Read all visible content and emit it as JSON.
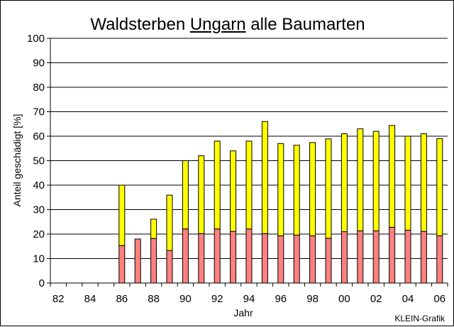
{
  "title": {
    "pre": "Waldsterben ",
    "underlined": "Ungarn",
    "post": " alle Baumarten"
  },
  "credit": "KLEIN-Grafik",
  "colors": {
    "lower": "#ff8080",
    "upper": "#ffff00",
    "outline": "#000000",
    "grid": "#000000"
  },
  "chart_data": {
    "type": "bar",
    "stacked": true,
    "title": "Waldsterben Ungarn alle Baumarten",
    "xlabel": "Jahr",
    "ylabel": "Anteil geschädigt [%]",
    "ylim": [
      0,
      100
    ],
    "yticks": [
      "0",
      "10",
      "20",
      "30",
      "40",
      "50",
      "60",
      "70",
      "80",
      "90",
      "100"
    ],
    "grid": true,
    "categories": [
      "82",
      "83",
      "84",
      "85",
      "86",
      "87",
      "88",
      "89",
      "90",
      "91",
      "92",
      "93",
      "94",
      "95",
      "96",
      "97",
      "98",
      "99",
      "00",
      "01",
      "02",
      "03",
      "04",
      "05",
      "06"
    ],
    "xtick_labels": [
      "82",
      "",
      "84",
      "",
      "86",
      "",
      "88",
      "",
      "90",
      "",
      "92",
      "",
      "94",
      "",
      "96",
      "",
      "98",
      "",
      "00",
      "",
      "02",
      "",
      "04",
      "",
      "06"
    ],
    "series": [
      {
        "color": "#ff8080",
        "values": [
          null,
          null,
          null,
          null,
          15.3,
          18,
          18.2,
          13.3,
          22.1,
          20.2,
          22.1,
          21.1,
          22.1,
          20.2,
          19.3,
          19.6,
          19.3,
          18.3,
          21,
          21.3,
          21.3,
          22.8,
          21.6,
          21.1,
          19.3
        ]
      },
      {
        "color": "#ffff00",
        "values": [
          null,
          null,
          null,
          null,
          24.7,
          0,
          7.9,
          22.6,
          27.9,
          31.8,
          35.9,
          32.9,
          35.9,
          45.8,
          37.7,
          36.7,
          38.1,
          40.6,
          40,
          41.7,
          40.7,
          41.6,
          38.4,
          39.9,
          39.7
        ]
      }
    ]
  }
}
